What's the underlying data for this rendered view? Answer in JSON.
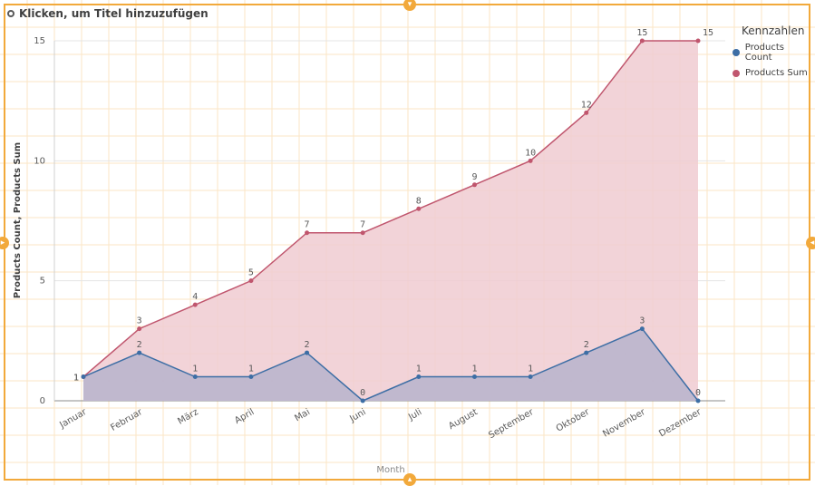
{
  "header": {
    "title": "Klicken, um Titel hinzuzufügen"
  },
  "chart_data": {
    "type": "area",
    "categories": [
      "Januar",
      "Februar",
      "März",
      "April",
      "Mai",
      "Juni",
      "Juli",
      "August",
      "September",
      "Oktober",
      "November",
      "Dezember"
    ],
    "series": [
      {
        "name": "Products Sum",
        "values": [
          1,
          3,
          4,
          5,
          7,
          7,
          8,
          9,
          10,
          12,
          15,
          15
        ],
        "color": "#c0566e",
        "fill": "#f0cbd1"
      },
      {
        "name": "Products Count",
        "values": [
          1,
          2,
          1,
          1,
          2,
          0,
          1,
          1,
          1,
          2,
          3,
          0
        ],
        "color": "#3d6ea5",
        "fill": "#b7b3cd"
      }
    ],
    "xlabel": "Month",
    "ylabel": "Products Count, Products Sum",
    "ylim": [
      0,
      15
    ],
    "yticks": [
      0,
      5,
      10,
      15
    ],
    "grid": true,
    "legend": {
      "title": "Kennzahlen",
      "placement": "top-right",
      "entries": [
        "Products Count",
        "Products Sum"
      ]
    }
  }
}
